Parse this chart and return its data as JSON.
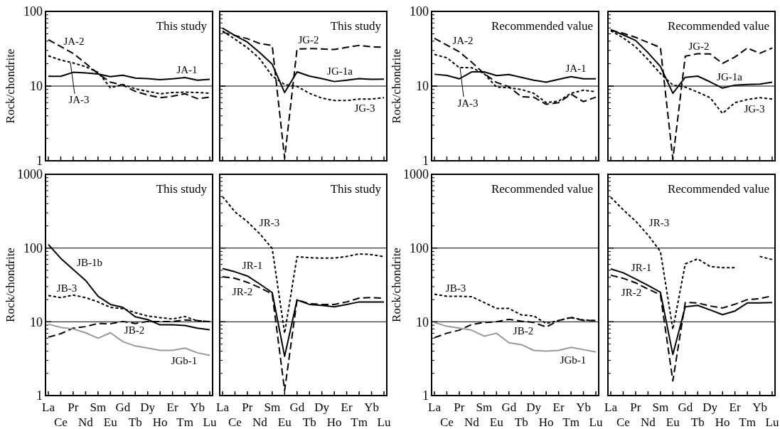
{
  "chart_data": [
    {
      "type": "line",
      "title": "This study",
      "ylabel": "Rock/chondrite",
      "categories": [
        "La",
        "Ce",
        "Pr",
        "Nd",
        "Sm",
        "Eu",
        "Gd",
        "Tb",
        "Dy",
        "Ho",
        "Er",
        "Tm",
        "Yb",
        "Lu"
      ],
      "log": "y",
      "grid": "y",
      "ylim": [
        1,
        100
      ],
      "yticks": [
        1,
        10,
        100
      ],
      "tick_labels": "y",
      "series": [
        {
          "name": "JA-1",
          "color": "#000000",
          "line_style": "solid",
          "values": [
            13.5,
            13.5,
            15.3,
            15,
            14.5,
            13.4,
            14,
            12.8,
            12.6,
            12.2,
            12.5,
            13,
            12,
            12.3
          ]
        },
        {
          "name": "JA-2",
          "color": "#000000",
          "line_style": "dashed",
          "values": [
            41.8,
            33.8,
            27.4,
            20.2,
            14.7,
            11.3,
            10.3,
            8.5,
            7.6,
            7,
            7.3,
            7.9,
            6.8,
            7.1
          ]
        },
        {
          "name": "JA-3",
          "color": "#000000",
          "line_style": "dotted",
          "values": [
            25.4,
            22.3,
            20.4,
            18.2,
            15.3,
            9.5,
            10.5,
            9.2,
            8.5,
            7.9,
            8.2,
            8.3,
            8.2,
            8
          ]
        }
      ]
    },
    {
      "type": "line",
      "title": "This study",
      "categories": [
        "La",
        "Ce",
        "Pr",
        "Nd",
        "Sm",
        "Eu",
        "Gd",
        "Tb",
        "Dy",
        "Ho",
        "Er",
        "Tm",
        "Yb",
        "Lu"
      ],
      "log": "y",
      "grid": "y",
      "ylim": [
        1,
        100
      ],
      "yticks": [
        1,
        10,
        100
      ],
      "tick_labels": false,
      "series": [
        {
          "name": "JG-1a",
          "color": "#000000",
          "line_style": "solid",
          "values": [
            59.7,
            47.6,
            38.8,
            28,
            19.6,
            8.2,
            15.5,
            13.6,
            12.6,
            11.5,
            12,
            12.6,
            12.3,
            12.4
          ]
        },
        {
          "name": "JG-2",
          "color": "#000000",
          "line_style": "dashed",
          "values": [
            52.5,
            47.6,
            43.1,
            37.1,
            34.9,
            1.08,
            31.4,
            31.8,
            31.4,
            30.9,
            33,
            35,
            33.6,
            33
          ]
        },
        {
          "name": "JG-3",
          "color": "#000000",
          "line_style": "dotted",
          "values": [
            54.6,
            42.5,
            32.6,
            23.2,
            13.6,
            10.5,
            9.9,
            8,
            6.9,
            6.4,
            6.4,
            6.7,
            6.7,
            7
          ]
        }
      ]
    },
    {
      "type": "line",
      "title": "Recommended value",
      "ylabel": "Rock/chondrite",
      "categories": [
        "La",
        "Ce",
        "Pr",
        "Nd",
        "Sm",
        "Eu",
        "Gd",
        "Tb",
        "Dy",
        "Ho",
        "Er",
        "Tm",
        "Yb",
        "Lu"
      ],
      "log": "y",
      "grid": "y",
      "ylim": [
        1,
        100
      ],
      "yticks": [
        1,
        10,
        100
      ],
      "tick_labels": "y",
      "series": [
        {
          "name": "JA-1",
          "color": "#000000",
          "line_style": "solid",
          "values": [
            14.4,
            13.9,
            12.5,
            15.5,
            15.5,
            13.8,
            14.3,
            13.1,
            12,
            11.3,
            12.3,
            13.4,
            12.5,
            12.5
          ]
        },
        {
          "name": "JA-2",
          "color": "#000000",
          "line_style": "dashed",
          "values": [
            43.5,
            35.4,
            28.7,
            20.9,
            14.7,
            11.2,
            9.8,
            7.2,
            7.1,
            5.7,
            6,
            7.8,
            6.2,
            7.1
          ]
        },
        {
          "name": "JA-3",
          "color": "#000000",
          "line_style": "dotted",
          "values": [
            26.5,
            23.9,
            17.7,
            17.6,
            14.7,
            9.7,
            9.5,
            9,
            8,
            6,
            6.3,
            8,
            8.8,
            8.4
          ]
        }
      ]
    },
    {
      "type": "line",
      "title": "Recommended value",
      "categories": [
        "La",
        "Ce",
        "Pr",
        "Nd",
        "Sm",
        "Eu",
        "Gd",
        "Tb",
        "Dy",
        "Ho",
        "Er",
        "Tm",
        "Yb",
        "Lu"
      ],
      "log": "y",
      "grid": "y",
      "ylim": [
        1,
        100
      ],
      "yticks": [
        1,
        10,
        100
      ],
      "tick_labels": false,
      "series": [
        {
          "name": "JG-1a",
          "color": "#000000",
          "line_style": "solid",
          "values": [
            56.8,
            48.5,
            40.8,
            28,
            18.3,
            8,
            13.1,
            13.6,
            11.4,
            9.4,
            10.3,
            10.5,
            10.6,
            11.3
          ]
        },
        {
          "name": "JG-2",
          "color": "#000000",
          "line_style": "dashed",
          "values": [
            55.9,
            50.9,
            44.9,
            38.3,
            32.8,
            1.05,
            25.1,
            27.1,
            27,
            20.1,
            24.5,
            32.3,
            27.5,
            32.3
          ]
        },
        {
          "name": "JG-3",
          "color": "#000000",
          "line_style": "dotted",
          "values": [
            55,
            44.2,
            33.5,
            22.6,
            14.7,
            10.3,
            9.7,
            8.3,
            7,
            4.3,
            6,
            6.6,
            7,
            6.7
          ]
        }
      ]
    },
    {
      "type": "line",
      "title": "This study",
      "ylabel": "Rock/chondrite",
      "categories": [
        "La",
        "Ce",
        "Pr",
        "Nd",
        "Sm",
        "Eu",
        "Gd",
        "Tb",
        "Dy",
        "Ho",
        "Er",
        "Tm",
        "Yb",
        "Lu"
      ],
      "log": "y",
      "grid": "y",
      "ylim": [
        1,
        1000
      ],
      "yticks": [
        1,
        10,
        100,
        1000
      ],
      "series": [
        {
          "name": "JB-1b",
          "color": "#000000",
          "line_style": "solid",
          "values": [
            112,
            72.5,
            51.4,
            36.4,
            22.2,
            17.2,
            15.7,
            11.7,
            10.7,
            9.1,
            9.1,
            8.9,
            8.2,
            7.8
          ]
        },
        {
          "name": "JB-3",
          "color": "#000000",
          "line_style": "dotted",
          "values": [
            22.7,
            21.3,
            23,
            21.3,
            18.6,
            15.7,
            15.1,
            13.3,
            12,
            11.4,
            10.9,
            11.8,
            10.3,
            10.1
          ]
        },
        {
          "name": "JB-2",
          "color": "#000000",
          "line_style": "dashed",
          "values": [
            6.2,
            6.9,
            8.2,
            8.6,
            9.5,
            9.4,
            10.1,
            9.5,
            10.1,
            10.1,
            10.1,
            10.6,
            10.4,
            10
          ]
        },
        {
          "name": "JGb-1",
          "color": "#999999",
          "line_style": "solid",
          "values": [
            9.3,
            8.4,
            8,
            7.1,
            6,
            7.1,
            5.4,
            4.7,
            4.4,
            4.1,
            4.1,
            4.4,
            3.8,
            3.5
          ]
        }
      ]
    },
    {
      "type": "line",
      "title": "This study",
      "categories": [
        "La",
        "Ce",
        "Pr",
        "Nd",
        "Sm",
        "Eu",
        "Gd",
        "Tb",
        "Dy",
        "Ho",
        "Er",
        "Tm",
        "Yb",
        "Lu"
      ],
      "log": "y",
      "grid": "y",
      "ylim": [
        1,
        1000
      ],
      "yticks": [
        1,
        10,
        100,
        1000
      ],
      "tick_labels": "x",
      "series": [
        {
          "name": "JR-3",
          "color": "#000000",
          "line_style": "dotted",
          "values": [
            499,
            310,
            228,
            156,
            98.5,
            7,
            76.5,
            74,
            73,
            73,
            77,
            83.3,
            81.5,
            76.5
          ]
        },
        {
          "name": "JR-1",
          "color": "#000000",
          "line_style": "solid",
          "values": [
            52.6,
            47.6,
            41.8,
            32.5,
            24.9,
            3.4,
            19.8,
            17.2,
            16.7,
            16,
            17.2,
            18.6,
            18.6,
            18.6
          ]
        },
        {
          "name": "JR-2",
          "color": "#000000",
          "line_style": "dashed",
          "values": [
            40.9,
            38.9,
            34.3,
            29,
            23.9,
            1.17,
            19.8,
            17.6,
            17.2,
            17.2,
            18.6,
            21,
            21.3,
            20.9
          ]
        }
      ]
    },
    {
      "type": "line",
      "title": "Recommended value",
      "ylabel": "Rock/chondrite",
      "categories": [
        "La",
        "Ce",
        "Pr",
        "Nd",
        "Sm",
        "Eu",
        "Gd",
        "Tb",
        "Dy",
        "Ho",
        "Er",
        "Tm",
        "Yb",
        "Lu"
      ],
      "log": "y",
      "grid": "y",
      "ylim": [
        1,
        1000
      ],
      "yticks": [
        1,
        10,
        100,
        1000
      ],
      "series": [
        {
          "name": "JB-3",
          "color": "#000000",
          "line_style": "dotted",
          "values": [
            23.7,
            22.2,
            22.2,
            21.9,
            18.3,
            15.2,
            15.2,
            12.4,
            12,
            9.5,
            10.4,
            11.5,
            10.6,
            10.4
          ]
        },
        {
          "name": "JB-2",
          "color": "#000000",
          "line_style": "dashed",
          "values": [
            6.1,
            7,
            7.7,
            9.2,
            9.8,
            10,
            10.8,
            10.2,
            9.8,
            8.5,
            10.4,
            11.4,
            10.4,
            10.4
          ]
        },
        {
          "name": "JGb-1",
          "color": "#999999",
          "line_style": "solid",
          "values": [
            9.8,
            8.7,
            8.2,
            7.7,
            6.4,
            7,
            5.2,
            4.9,
            4.1,
            4,
            4.1,
            4.5,
            4.2,
            3.9
          ]
        }
      ]
    },
    {
      "type": "line",
      "title": "Recommended value",
      "categories": [
        "La",
        "Ce",
        "Pr",
        "Nd",
        "Sm",
        "Eu",
        "Gd",
        "Tb",
        "Dy",
        "Ho",
        "Er",
        "Tm",
        "Yb",
        "Lu"
      ],
      "log": "y",
      "grid": "y",
      "ylim": [
        1,
        1000
      ],
      "yticks": [
        1,
        10,
        100,
        1000
      ],
      "tick_labels": "x",
      "series": [
        {
          "name": "JR-3",
          "color": "#000000",
          "line_style": "dotted",
          "values": [
            489,
            330,
            232,
            150,
            90,
            7.9,
            61,
            71.3,
            56.3,
            54.3,
            54.3,
            null,
            77.1,
            69.7
          ]
        },
        {
          "name": "JR-1",
          "color": "#000000",
          "line_style": "solid",
          "values": [
            52.1,
            46.3,
            38,
            31.2,
            25.1,
            3.6,
            16,
            16.7,
            14.5,
            12.5,
            14,
            18,
            18,
            18.3
          ]
        },
        {
          "name": "JR-2",
          "color": "#000000",
          "line_style": "dashed",
          "values": [
            42.8,
            38.9,
            33.8,
            27.8,
            23.2,
            1.58,
            18.3,
            18,
            16.4,
            15.4,
            17.3,
            20,
            20.6,
            22.5
          ]
        }
      ]
    }
  ]
}
